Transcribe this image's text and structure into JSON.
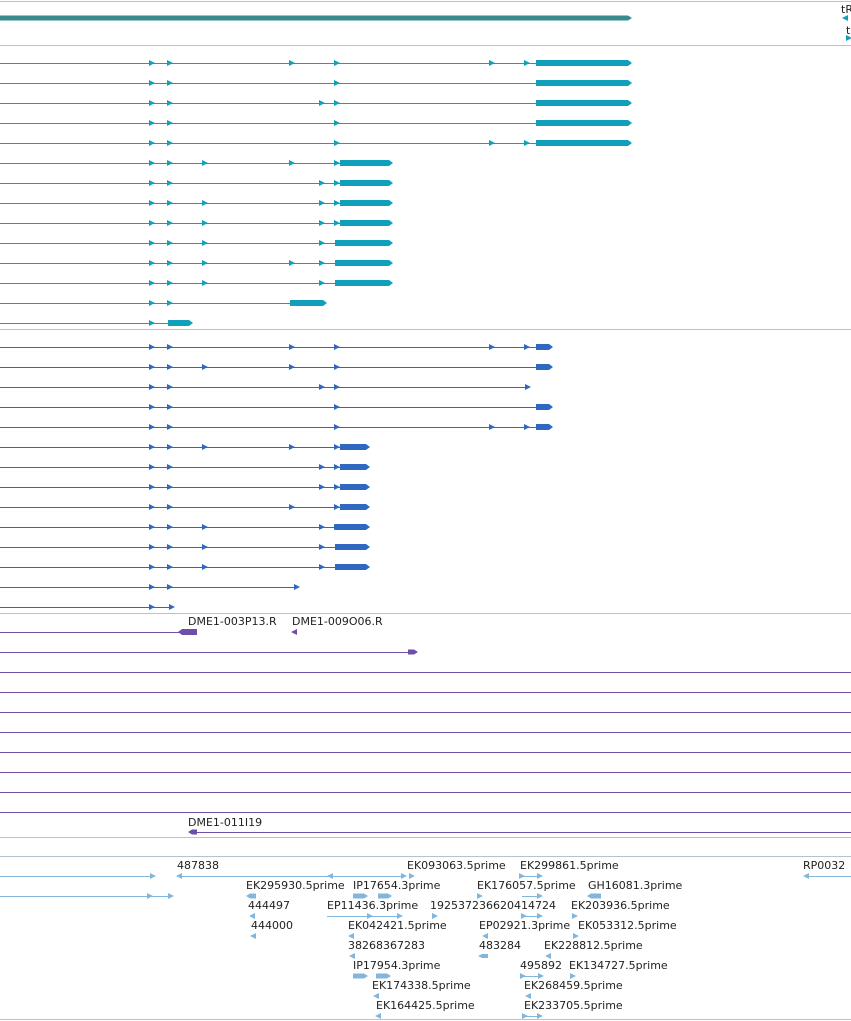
{
  "colors": {
    "gene": "#3a8c8c",
    "transcript": "#10a0bc",
    "cds": "#2f68c0",
    "clone": "#6e4ea8",
    "est": "#82b6dc",
    "divider": "#b0c4d6"
  },
  "tracks": {
    "gene_row": {
      "right_labels": [
        "tR",
        "t"
      ]
    },
    "clone_labels": [
      "DME1-003P13.R",
      "DME1-009O06.R",
      "DME1-011I19"
    ],
    "est_labels": [
      "487838",
      "EK093063.5prime",
      "EK299861.5prime",
      "RP0032",
      "EK295930.5prime",
      "IP17654.3prime",
      "EK176057.5prime",
      "GH16081.3prime",
      "444497",
      "EP11436.3prime",
      "192537236620414724",
      "EK203936.5prime",
      "444000",
      "EK042421.5prime",
      "EP02921.3prime",
      "EK053312.5prime",
      "38268367283",
      "483284",
      "EK228812.5prime",
      "IP17954.3prime",
      "495892",
      "EK134727.5prime",
      "EK174338.5prime",
      "EK268459.5prime",
      "EK164425.5prime",
      "EK233705.5prime"
    ]
  }
}
